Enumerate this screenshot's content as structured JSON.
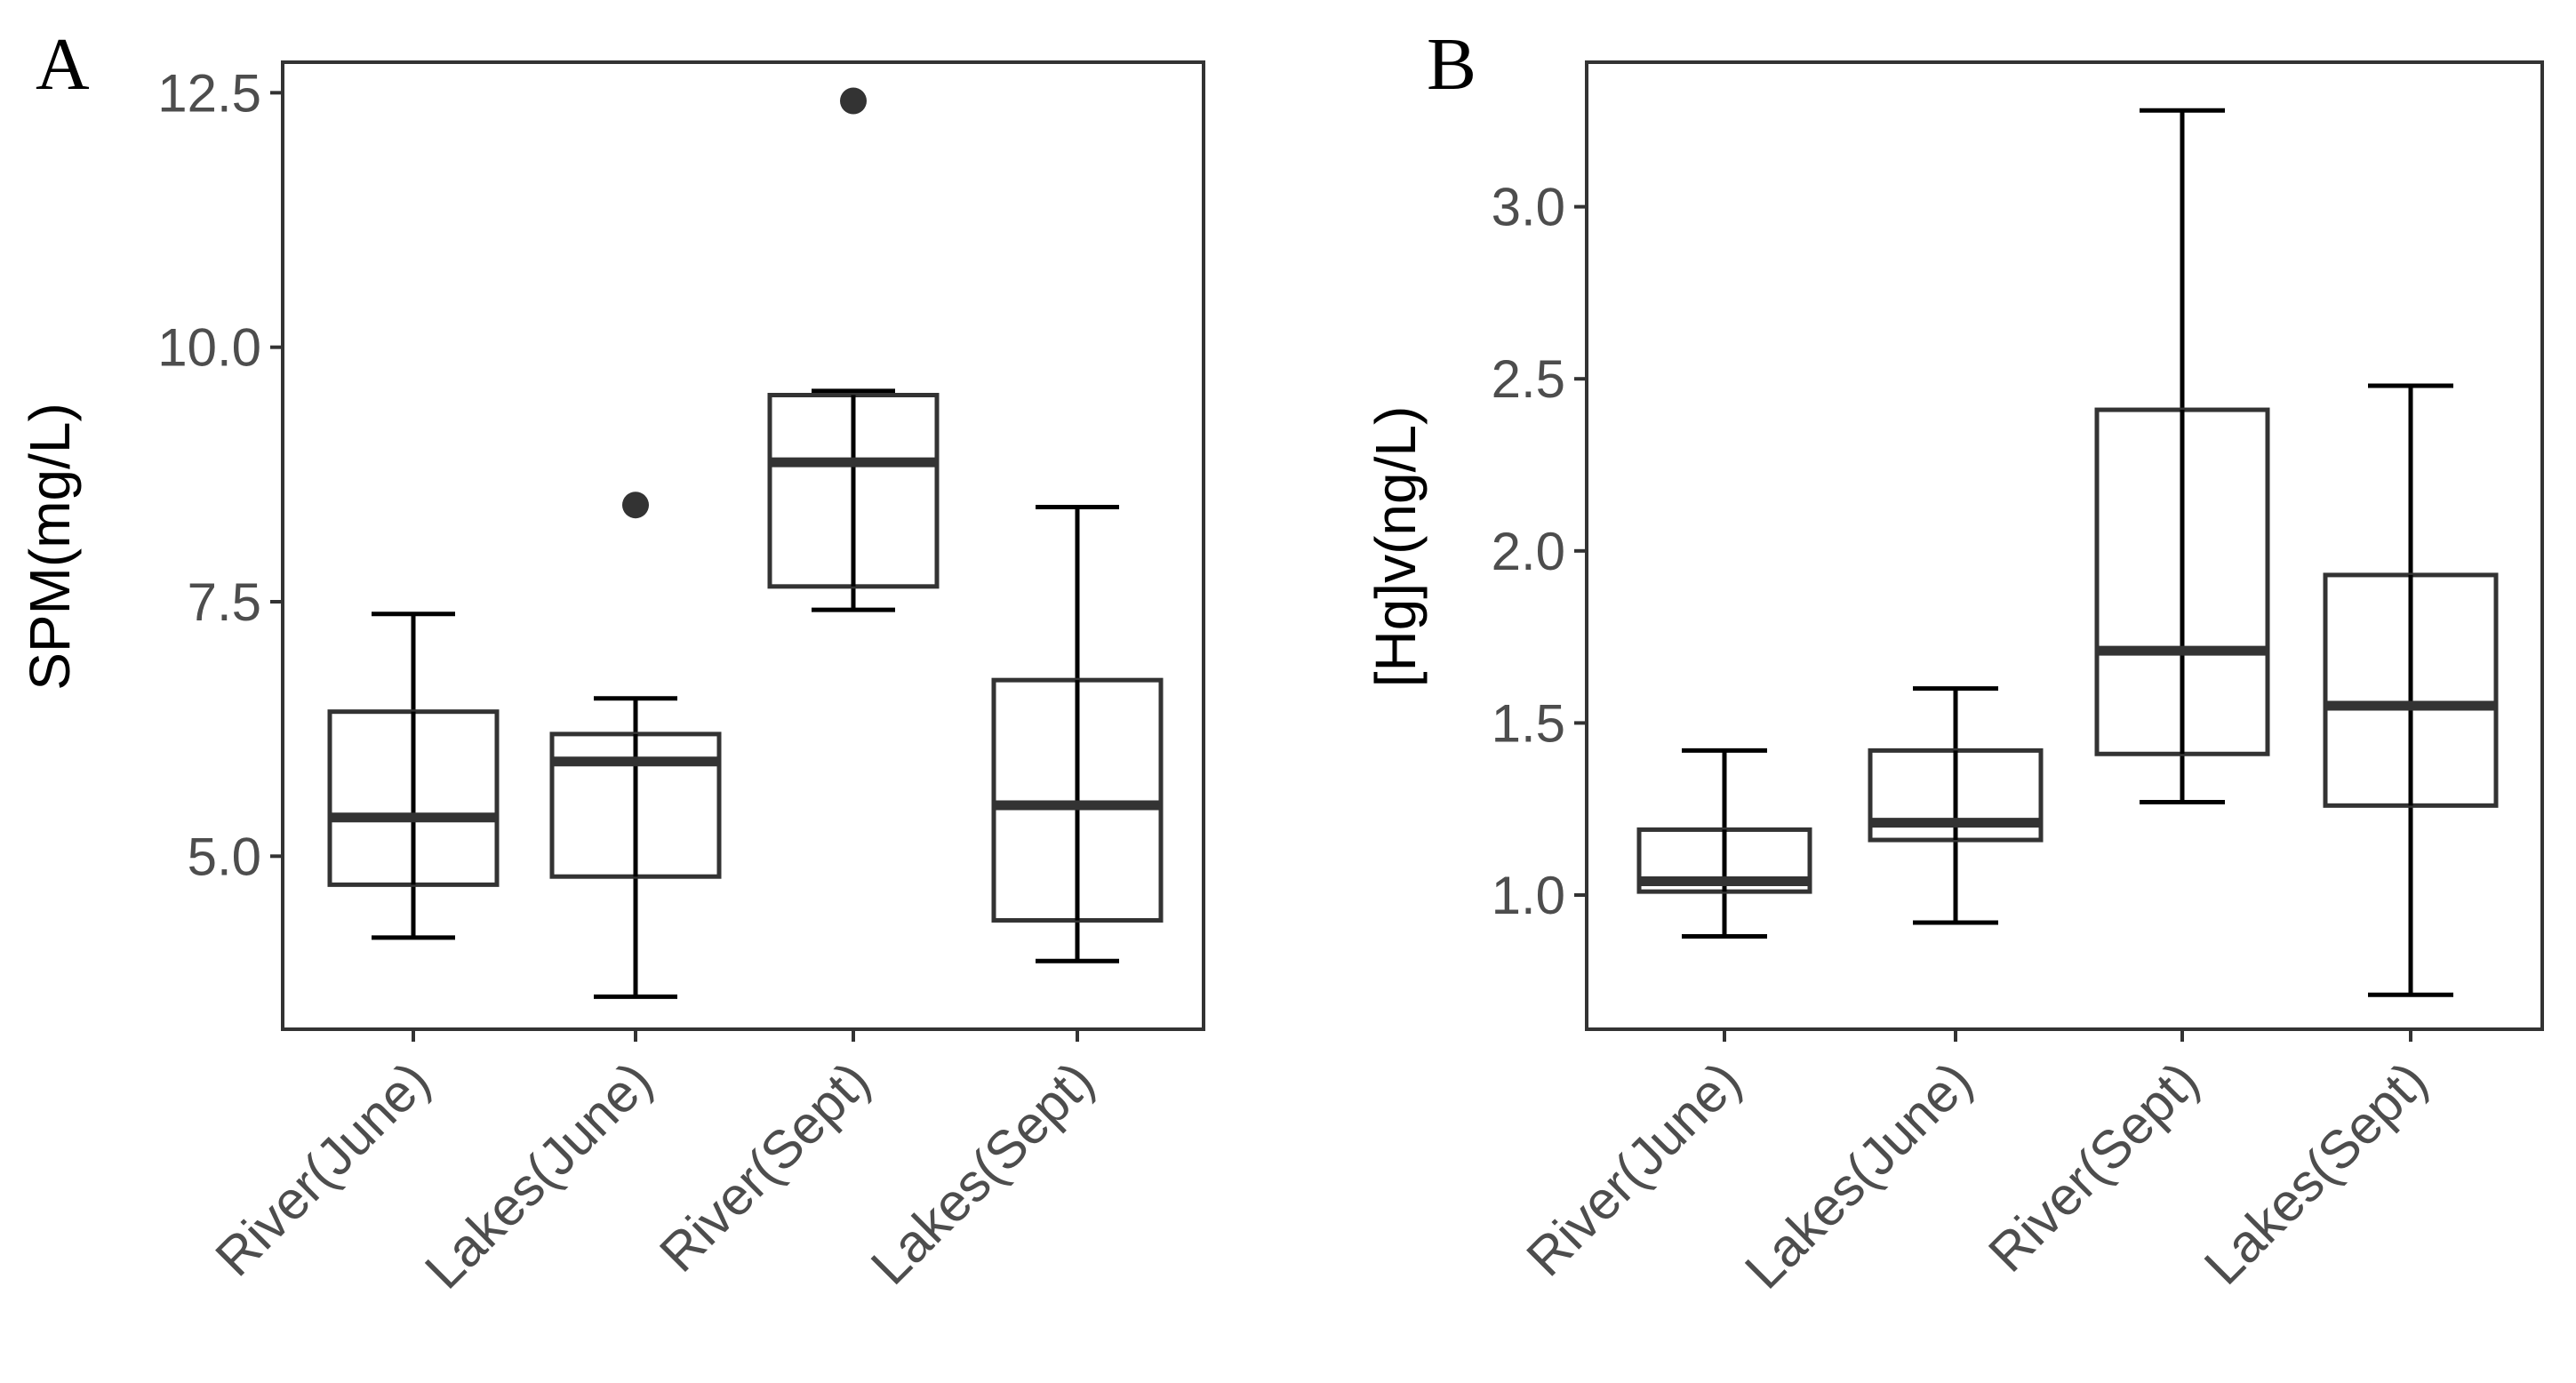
{
  "chart_data": [
    {
      "panel": "A",
      "type": "boxplot",
      "ylabel": "SPM(mg/L)",
      "ylim": [
        3.3,
        12.8
      ],
      "yticks": [
        5.0,
        7.5,
        10.0,
        12.5
      ],
      "ytick_labels": [
        "5.0",
        "7.5",
        "10.0",
        "12.5"
      ],
      "categories": [
        "River(June)",
        "Lakes(June)",
        "River(Sept)",
        "Lakes(Sept)"
      ],
      "boxes": [
        {
          "whisker_low": 4.2,
          "q1": 4.72,
          "median": 5.38,
          "q3": 6.42,
          "whisker_high": 7.38,
          "outliers": []
        },
        {
          "whisker_low": 3.62,
          "q1": 4.8,
          "median": 5.93,
          "q3": 6.2,
          "whisker_high": 6.55,
          "outliers": [
            8.45
          ]
        },
        {
          "whisker_low": 7.42,
          "q1": 7.65,
          "median": 8.87,
          "q3": 9.53,
          "whisker_high": 9.57,
          "outliers": [
            12.42
          ]
        },
        {
          "whisker_low": 3.97,
          "q1": 4.37,
          "median": 5.5,
          "q3": 6.73,
          "whisker_high": 8.43,
          "outliers": []
        }
      ]
    },
    {
      "panel": "B",
      "type": "boxplot",
      "ylabel": "[Hg]v(ng/L)",
      "ylim": [
        0.61,
        3.42
      ],
      "yticks": [
        1.0,
        1.5,
        2.0,
        2.5,
        3.0
      ],
      "ytick_labels": [
        "1.0",
        "1.5",
        "2.0",
        "2.5",
        "3.0"
      ],
      "categories": [
        "River(June)",
        "Lakes(June)",
        "River(Sept)",
        "Lakes(Sept)"
      ],
      "boxes": [
        {
          "whisker_low": 0.88,
          "q1": 1.01,
          "median": 1.04,
          "q3": 1.19,
          "whisker_high": 1.42,
          "outliers": []
        },
        {
          "whisker_low": 0.92,
          "q1": 1.16,
          "median": 1.21,
          "q3": 1.42,
          "whisker_high": 1.6,
          "outliers": []
        },
        {
          "whisker_low": 1.27,
          "q1": 1.41,
          "median": 1.71,
          "q3": 2.41,
          "whisker_high": 3.28,
          "outliers": []
        },
        {
          "whisker_low": 0.71,
          "q1": 1.26,
          "median": 1.55,
          "q3": 1.93,
          "whisker_high": 2.48,
          "outliers": []
        }
      ]
    }
  ]
}
